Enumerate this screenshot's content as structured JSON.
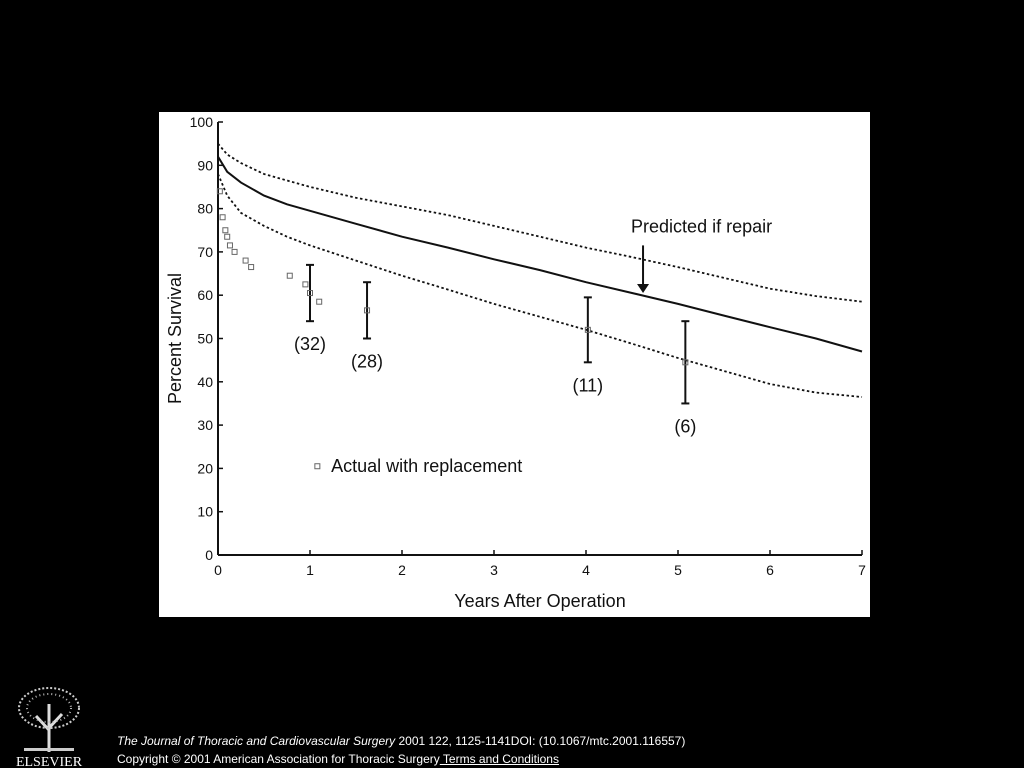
{
  "chart_data": {
    "type": "line",
    "xlabel": "Years After Operation",
    "ylabel": "Percent Survival",
    "xlim": [
      0,
      7
    ],
    "ylim": [
      0,
      100
    ],
    "x_ticks": [
      0,
      1,
      2,
      3,
      4,
      5,
      6,
      7
    ],
    "y_ticks": [
      0,
      10,
      20,
      30,
      40,
      50,
      60,
      70,
      80,
      90,
      100
    ],
    "grid": false,
    "series": [
      {
        "name": "Predicted if repair",
        "style": "solid",
        "points": [
          [
            0,
            92
          ],
          [
            0.1,
            88.5
          ],
          [
            0.25,
            86
          ],
          [
            0.5,
            83
          ],
          [
            0.75,
            81
          ],
          [
            1,
            79.5
          ],
          [
            1.5,
            76.5
          ],
          [
            2,
            73.5
          ],
          [
            2.5,
            71
          ],
          [
            3,
            68.3
          ],
          [
            3.5,
            65.8
          ],
          [
            4,
            63
          ],
          [
            4.5,
            60.5
          ],
          [
            5,
            58
          ],
          [
            5.5,
            55.3
          ],
          [
            6,
            52.6
          ],
          [
            6.5,
            50
          ],
          [
            7,
            47
          ]
        ]
      },
      {
        "style": "dotted",
        "points": [
          [
            0,
            95
          ],
          [
            0.1,
            92.5
          ],
          [
            0.25,
            90.5
          ],
          [
            0.5,
            88
          ],
          [
            0.75,
            86.5
          ],
          [
            1,
            85
          ],
          [
            1.5,
            82.5
          ],
          [
            2,
            80.5
          ],
          [
            2.5,
            78.5
          ],
          [
            3,
            76
          ],
          [
            3.5,
            73.5
          ],
          [
            4,
            71
          ],
          [
            4.5,
            68.8
          ],
          [
            5,
            66.5
          ],
          [
            5.5,
            64
          ],
          [
            6,
            61.5
          ],
          [
            6.5,
            59.8
          ],
          [
            7,
            58.5
          ]
        ]
      },
      {
        "style": "dotted",
        "points": [
          [
            0,
            88
          ],
          [
            0.1,
            83
          ],
          [
            0.25,
            79
          ],
          [
            0.5,
            76
          ],
          [
            0.75,
            73.5
          ],
          [
            1,
            71.5
          ],
          [
            1.5,
            68
          ],
          [
            2,
            64.5
          ],
          [
            2.5,
            61.3
          ],
          [
            3,
            58
          ],
          [
            3.5,
            55
          ],
          [
            4,
            52
          ],
          [
            4.5,
            48.8
          ],
          [
            5,
            45.5
          ],
          [
            5.5,
            42.5
          ],
          [
            6,
            39.5
          ],
          [
            6.5,
            37.5
          ],
          [
            7,
            36.5
          ]
        ]
      },
      {
        "name": "Actual with replacement",
        "type": "scatter",
        "points": [
          [
            0.02,
            84
          ],
          [
            0.05,
            78
          ],
          [
            0.08,
            75
          ],
          [
            0.1,
            73.5
          ],
          [
            0.13,
            71.5
          ],
          [
            0.18,
            70
          ],
          [
            0.3,
            68
          ],
          [
            0.36,
            66.5
          ],
          [
            0.78,
            64.5
          ],
          [
            0.95,
            62.5
          ],
          [
            1,
            60.5
          ],
          [
            1.1,
            58.5
          ],
          [
            1.62,
            56.5
          ],
          [
            4.02,
            52
          ],
          [
            5.08,
            44.5
          ]
        ]
      }
    ],
    "error_bars": [
      {
        "x": 1,
        "low": 54,
        "high": 67,
        "label": "(32)"
      },
      {
        "x": 1.62,
        "low": 50,
        "high": 63,
        "label": "(28)"
      },
      {
        "x": 4.02,
        "low": 44.5,
        "high": 59.5,
        "label": "(11)"
      },
      {
        "x": 5.08,
        "low": 35,
        "high": 54,
        "label": "(6)"
      }
    ],
    "annotations": [
      {
        "text": "Predicted if repair",
        "arrow_to": [
          4.62,
          60.5
        ]
      },
      {
        "text": "Actual with replacement"
      }
    ]
  },
  "footer": {
    "logo_text": "ELSEVIER",
    "journal": "The Journal of Thoracic and Cardiovascular Surgery",
    "citation_rest": " 2001 122, 1125-1141DOI: (10.1067/mtc.2001.116557)",
    "copyright": "Copyright © 2001 American Association for Thoracic Surgery",
    "terms_link": " Terms and Conditions"
  }
}
